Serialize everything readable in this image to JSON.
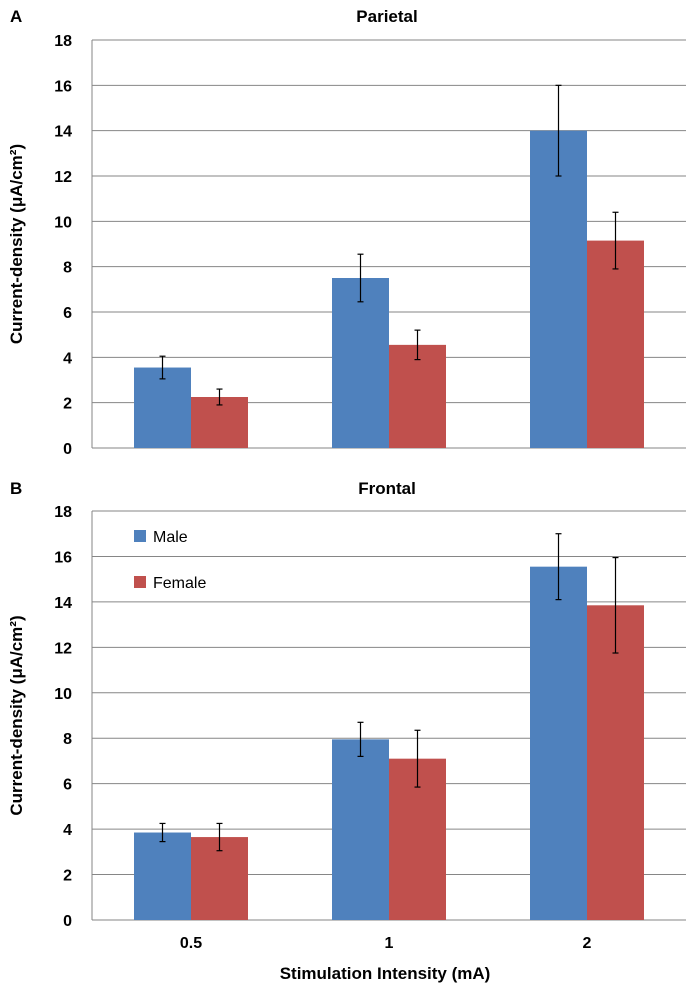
{
  "colors": {
    "male": "#4F81BD",
    "female": "#C0504D"
  },
  "xlabel": "Stimulation Intensity (mA)",
  "chart_data": [
    {
      "panel": "A",
      "type": "bar",
      "title": "Parietal",
      "ylabel": "Current-density (μA/cm²)",
      "ylim": [
        0,
        18
      ],
      "yticks": [
        0,
        2,
        4,
        6,
        8,
        10,
        12,
        14,
        16,
        18
      ],
      "grid": true,
      "categories": [
        "0.5",
        "1",
        "2"
      ],
      "series": [
        {
          "name": "Male",
          "values": [
            3.55,
            7.5,
            14.0
          ],
          "errors": [
            0.5,
            1.05,
            2.0
          ]
        },
        {
          "name": "Female",
          "values": [
            2.25,
            4.55,
            9.15
          ],
          "errors": [
            0.35,
            0.65,
            1.25
          ]
        }
      ],
      "legend": null
    },
    {
      "panel": "B",
      "type": "bar",
      "title": "Frontal",
      "ylabel": "Current-density (μA/cm²)",
      "xlabel": "Stimulation Intensity (mA)",
      "ylim": [
        0,
        18
      ],
      "yticks": [
        0,
        2,
        4,
        6,
        8,
        10,
        12,
        14,
        16,
        18
      ],
      "grid": true,
      "categories": [
        "0.5",
        "1",
        "2"
      ],
      "series": [
        {
          "name": "Male",
          "values": [
            3.85,
            7.95,
            15.55
          ],
          "errors": [
            0.4,
            0.75,
            1.45
          ]
        },
        {
          "name": "Female",
          "values": [
            3.65,
            7.1,
            13.85
          ],
          "errors": [
            0.6,
            1.25,
            2.1
          ]
        }
      ],
      "legend": "top-left"
    }
  ]
}
